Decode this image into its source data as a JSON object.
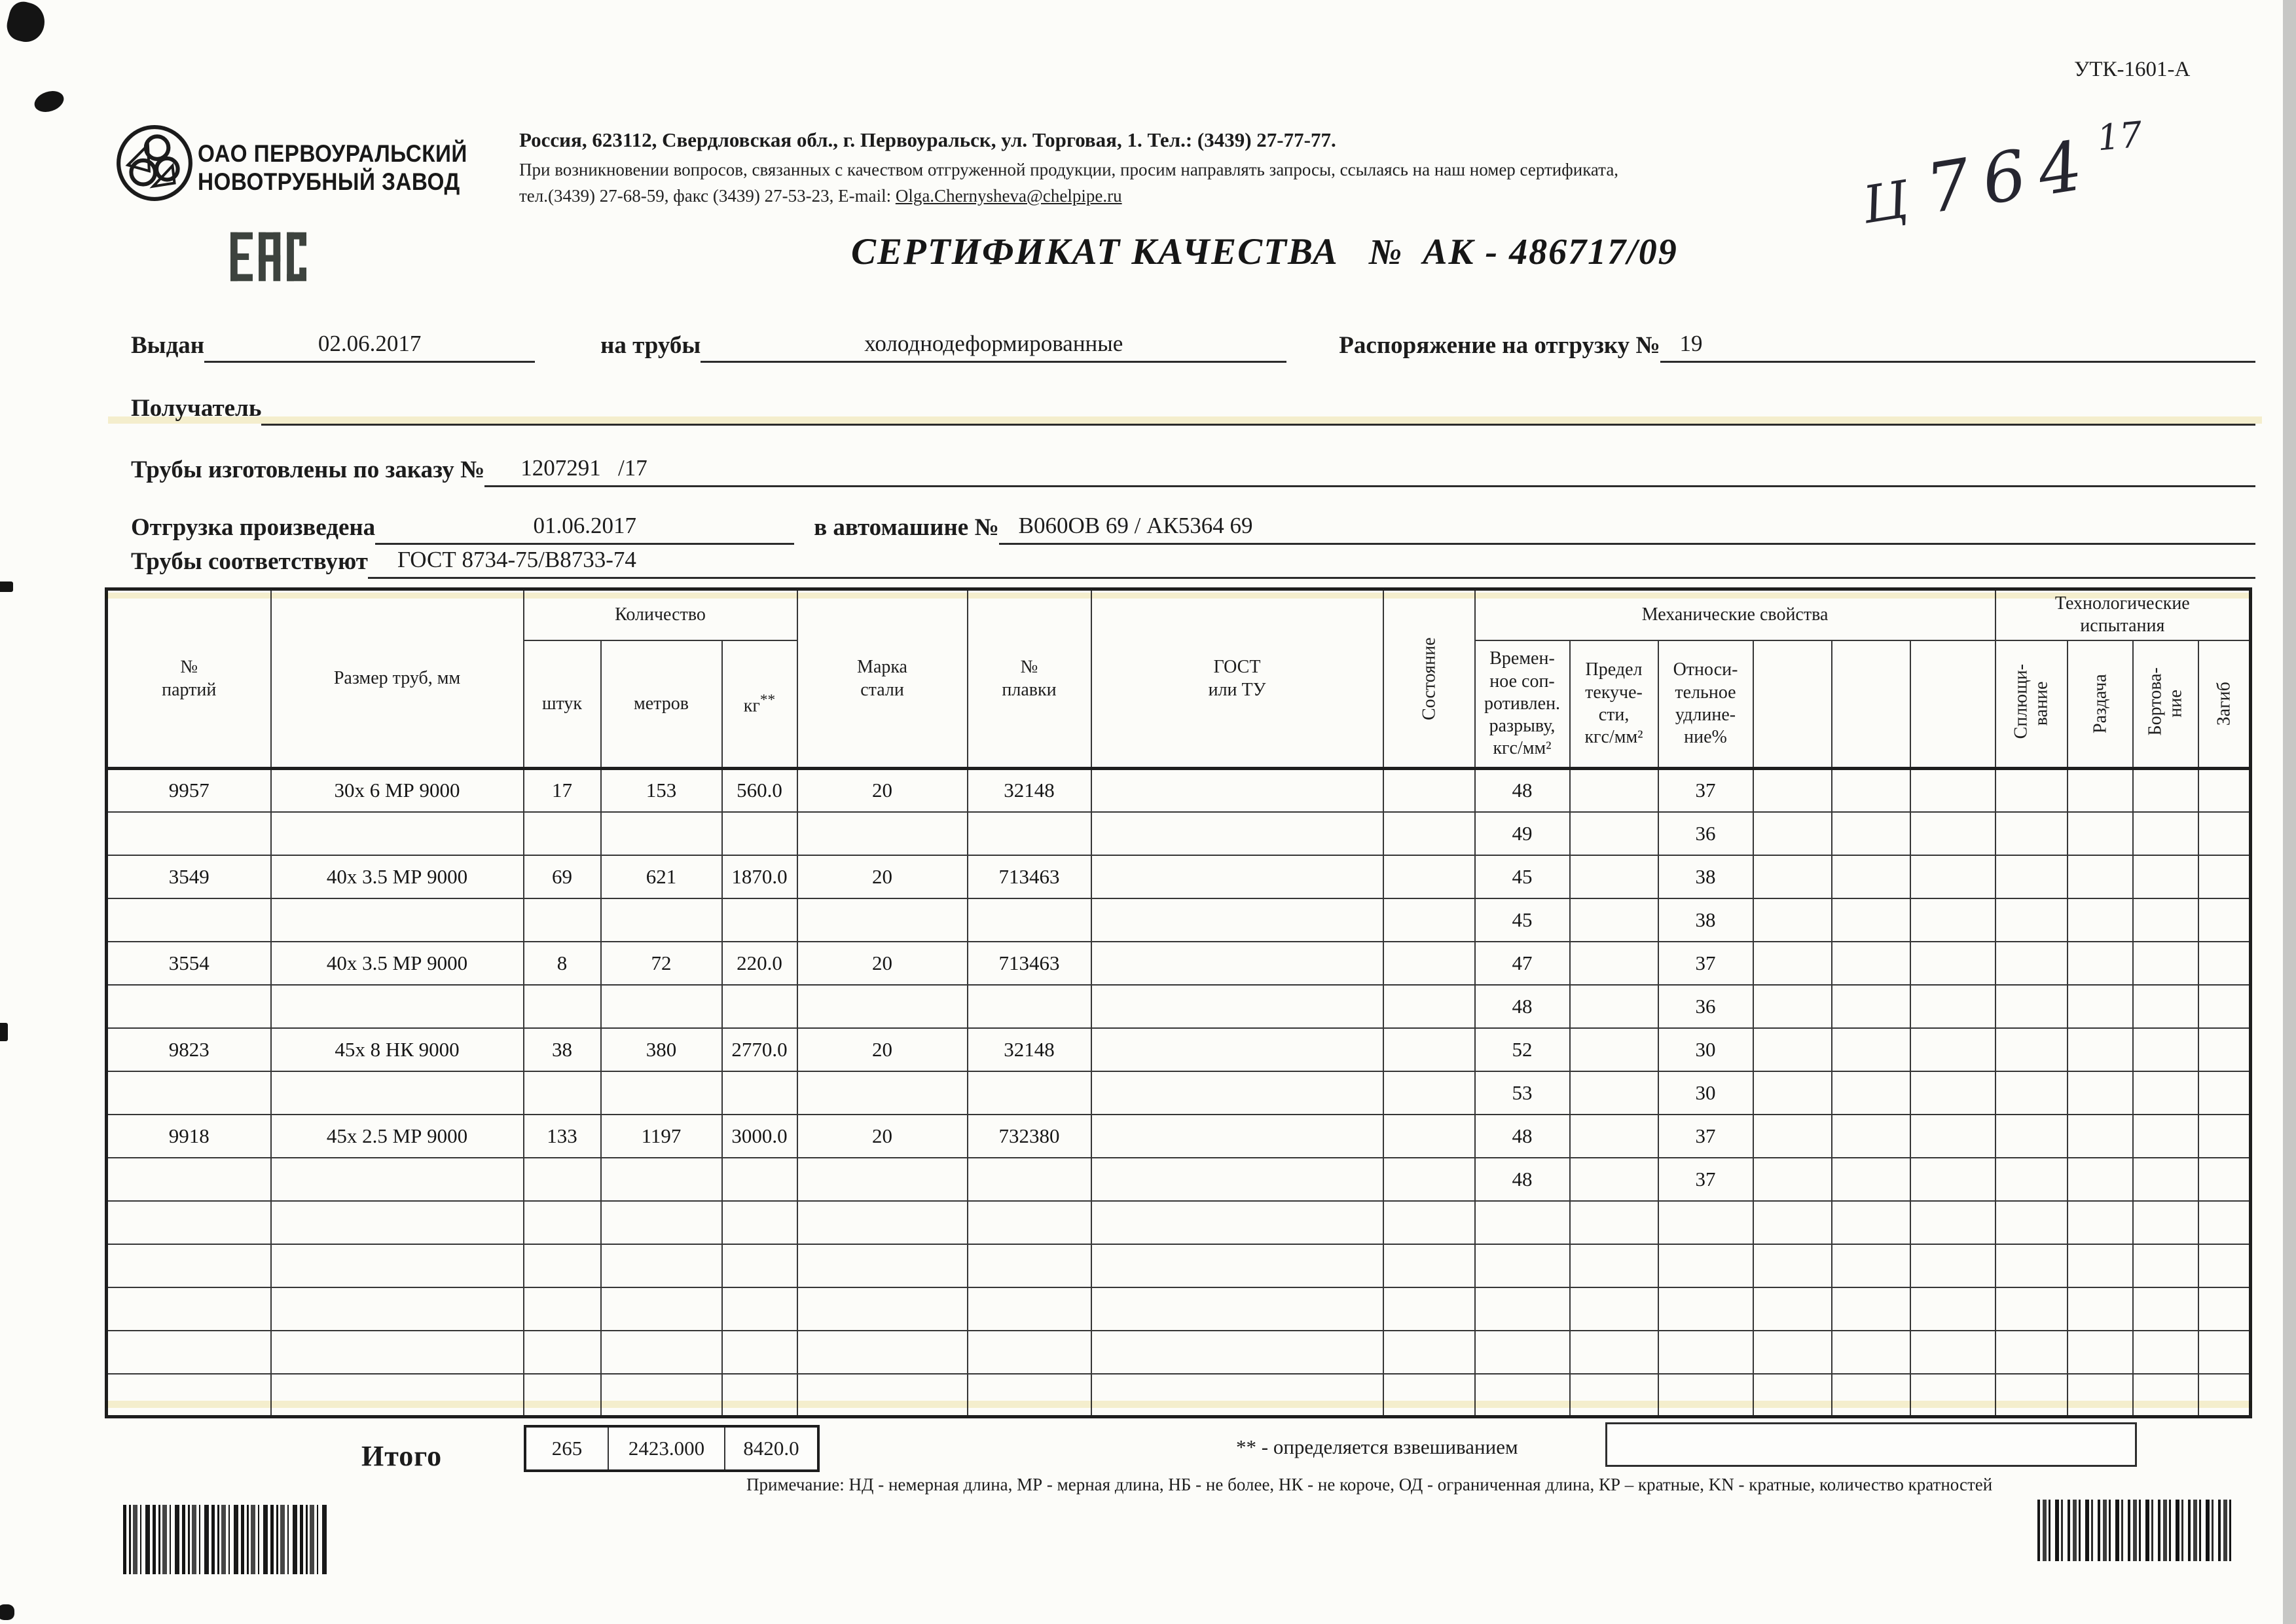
{
  "page": {
    "form_code": "УТК-1601-А",
    "handwritten": {
      "letter": "Ц",
      "number": "764",
      "sup": "17"
    }
  },
  "company": {
    "name": "ОАО ПЕРВОУРАЛЬСКИЙ\nНОВОТРУБНЫЙ  ЗАВОД",
    "logo_icon": "pipe-plant-logo",
    "eac_icon": "eac-conformity-mark",
    "address_line": "Россия, 623112, Свердловская обл., г. Первоуральск, ул. Торговая, 1. Тел.: (3439) 27-77-77.",
    "note_line": "При возникновении вопросов, связанных с качеством отгруженной продукции, просим направлять запросы, ссылаясь на наш номер сертификата,",
    "contacts_prefix": "тел.(3439) 27-68-59, факс (3439) 27-53-23,  E-mail: ",
    "email": "Olga.Chernysheva@chelpipe.ru"
  },
  "certificate": {
    "title": "СЕРТИФИКАТ КАЧЕСТВА",
    "number_sign": "№",
    "number": "АК - 486717/09"
  },
  "fields": {
    "issued_label": "Выдан",
    "issued_value": "02.06.2017",
    "pipes_label": "на трубы",
    "pipes_value": "холоднодеформированные",
    "shipping_order_label": "Распоряжение на отгрузку №",
    "shipping_order_value": "19",
    "receiver_label": "Получатель",
    "receiver_value": "",
    "order_label": "Трубы изготовлены по заказу №",
    "order_value": "1207291   /17",
    "shipment_label": "Отгрузка произведена",
    "shipment_date": "01.06.2017",
    "truck_label": "в автомашине №",
    "truck_value": "В060ОВ 69 / АК5364 69",
    "standard_label": "Трубы соответствуют",
    "standard_value": "ГОСТ 8734-75/В8733-74"
  },
  "table": {
    "headers": {
      "party": "№\nпартий",
      "size": "Размер труб, мм",
      "quantity": "Количество",
      "pcs": "штук",
      "meters": "метров",
      "kg_unit": "кг",
      "kg_sup": "**",
      "steel": "Марка\nстали",
      "melt": "№\nплавки",
      "gost": "ГОСТ\nили ТУ",
      "state": "Состояние",
      "mech": "Механические свойства",
      "tensile": "Времен-\nное соп-\nротивлен.\nразрыву,\nкгс/мм²",
      "yield": "Предел\nтекуче-\nсти,\nкгс/мм²",
      "elongation": "Относи-\nтельное\nудлине-\nние%",
      "tech": "Технологические\nиспытания",
      "flattening": "Сплющи-\nвание",
      "expansion": "Раздача",
      "beading": "Бортова-\nние",
      "bend": "Загиб"
    },
    "rows": [
      [
        "9957",
        "30х 6 МР 9000",
        "17",
        "153",
        "560.0",
        "20",
        "32148",
        "",
        "",
        "48",
        "",
        "37",
        "",
        "",
        "",
        "",
        "",
        "",
        ""
      ],
      [
        "",
        "",
        "",
        "",
        "",
        "",
        "",
        "",
        "",
        "49",
        "",
        "36",
        "",
        "",
        "",
        "",
        "",
        "",
        ""
      ],
      [
        "3549",
        "40х 3.5 МР 9000",
        "69",
        "621",
        "1870.0",
        "20",
        "713463",
        "",
        "",
        "45",
        "",
        "38",
        "",
        "",
        "",
        "",
        "",
        "",
        ""
      ],
      [
        "",
        "",
        "",
        "",
        "",
        "",
        "",
        "",
        "",
        "45",
        "",
        "38",
        "",
        "",
        "",
        "",
        "",
        "",
        ""
      ],
      [
        "3554",
        "40х 3.5 МР 9000",
        "8",
        "72",
        "220.0",
        "20",
        "713463",
        "",
        "",
        "47",
        "",
        "37",
        "",
        "",
        "",
        "",
        "",
        "",
        ""
      ],
      [
        "",
        "",
        "",
        "",
        "",
        "",
        "",
        "",
        "",
        "48",
        "",
        "36",
        "",
        "",
        "",
        "",
        "",
        "",
        ""
      ],
      [
        "9823",
        "45х 8 НК 9000",
        "38",
        "380",
        "2770.0",
        "20",
        "32148",
        "",
        "",
        "52",
        "",
        "30",
        "",
        "",
        "",
        "",
        "",
        "",
        ""
      ],
      [
        "",
        "",
        "",
        "",
        "",
        "",
        "",
        "",
        "",
        "53",
        "",
        "30",
        "",
        "",
        "",
        "",
        "",
        "",
        ""
      ],
      [
        "9918",
        "45х 2.5 МР 9000",
        "133",
        "1197",
        "3000.0",
        "20",
        "732380",
        "",
        "",
        "48",
        "",
        "37",
        "",
        "",
        "",
        "",
        "",
        "",
        ""
      ],
      [
        "",
        "",
        "",
        "",
        "",
        "",
        "",
        "",
        "",
        "48",
        "",
        "37",
        "",
        "",
        "",
        "",
        "",
        "",
        ""
      ],
      [
        "",
        "",
        "",
        "",
        "",
        "",
        "",
        "",
        "",
        "",
        "",
        "",
        "",
        "",
        "",
        "",
        "",
        "",
        ""
      ],
      [
        "",
        "",
        "",
        "",
        "",
        "",
        "",
        "",
        "",
        "",
        "",
        "",
        "",
        "",
        "",
        "",
        "",
        "",
        ""
      ],
      [
        "",
        "",
        "",
        "",
        "",
        "",
        "",
        "",
        "",
        "",
        "",
        "",
        "",
        "",
        "",
        "",
        "",
        "",
        ""
      ],
      [
        "",
        "",
        "",
        "",
        "",
        "",
        "",
        "",
        "",
        "",
        "",
        "",
        "",
        "",
        "",
        "",
        "",
        "",
        ""
      ],
      [
        "",
        "",
        "",
        "",
        "",
        "",
        "",
        "",
        "",
        "",
        "",
        "",
        "",
        "",
        "",
        "",
        "",
        "",
        ""
      ]
    ],
    "totals": {
      "label": "Итого",
      "pcs": "265",
      "meters": "2423.000",
      "kg": "8420.0"
    },
    "weighing_note": "** - определяется взвешиванием"
  },
  "footnote": "Примечание: НД - немерная длина, МР - мерная длина, НБ - не более, НК - не короче, ОД - ограниченная длина, КР – кратные, KN - кратные, количество кратностей"
}
